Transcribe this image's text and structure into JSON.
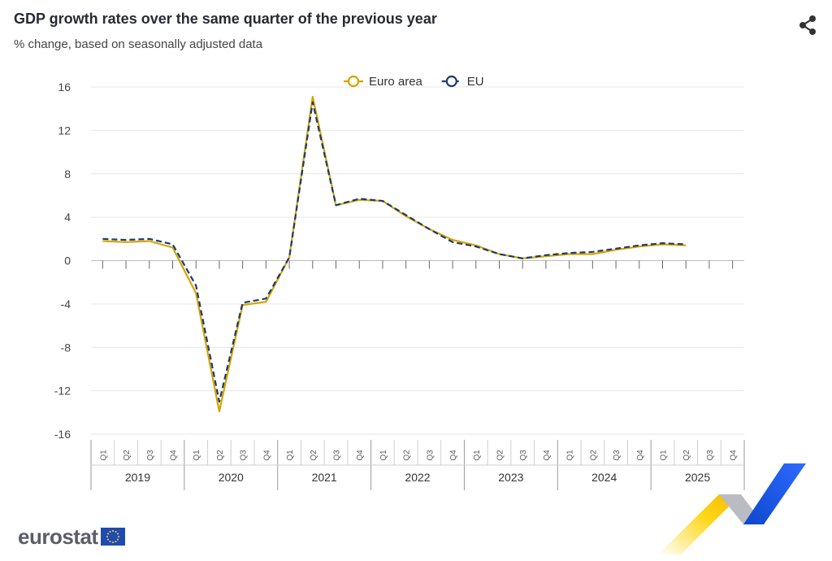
{
  "header": {
    "title": "GDP growth rates over the same quarter of the previous year",
    "subtitle": "% change, based on seasonally adjusted data",
    "share_icon": "share-icon"
  },
  "brand": {
    "logo_text": "eurostat",
    "flag_icon": "eu-flag-icon"
  },
  "colors": {
    "euro_area": "#d4a400",
    "eu": "#1e3a6e",
    "grid": "#e6e6e6",
    "axis": "#555555"
  },
  "chart_data": {
    "type": "line",
    "title": "GDP growth rates over the same quarter of the previous year",
    "subtitle": "% change, based on seasonally adjusted data",
    "ylim": [
      -16,
      16
    ],
    "yticks": [
      "16",
      "12",
      "8",
      "4",
      "0",
      "-4",
      "-8",
      "-12",
      "-16"
    ],
    "ytick_values": [
      16,
      12,
      8,
      4,
      0,
      -4,
      -8,
      -12,
      -16
    ],
    "quarter_labels": [
      "Q1",
      "Q2",
      "Q3",
      "Q4"
    ],
    "years": [
      "2019",
      "2020",
      "2021",
      "2022",
      "2023",
      "2024",
      "2025"
    ],
    "legend_position": "top-center",
    "grid": true,
    "series": [
      {
        "name": "Euro area",
        "style": "solid",
        "values": [
          1.8,
          1.7,
          1.8,
          1.2,
          -3.0,
          -13.9,
          -4.1,
          -3.8,
          0.3,
          15.1,
          5.1,
          5.6,
          5.5,
          4.1,
          2.9,
          1.9,
          1.4,
          0.6,
          0.2,
          0.4,
          0.6,
          0.6,
          1.0,
          1.3,
          1.5,
          1.4
        ]
      },
      {
        "name": "EU",
        "style": "dashed",
        "values": [
          2.0,
          1.9,
          2.0,
          1.5,
          -2.3,
          -13.0,
          -3.9,
          -3.5,
          0.3,
          14.6,
          5.1,
          5.7,
          5.5,
          4.2,
          2.9,
          1.7,
          1.3,
          0.6,
          0.2,
          0.5,
          0.7,
          0.8,
          1.1,
          1.4,
          1.6,
          1.5
        ]
      }
    ]
  }
}
